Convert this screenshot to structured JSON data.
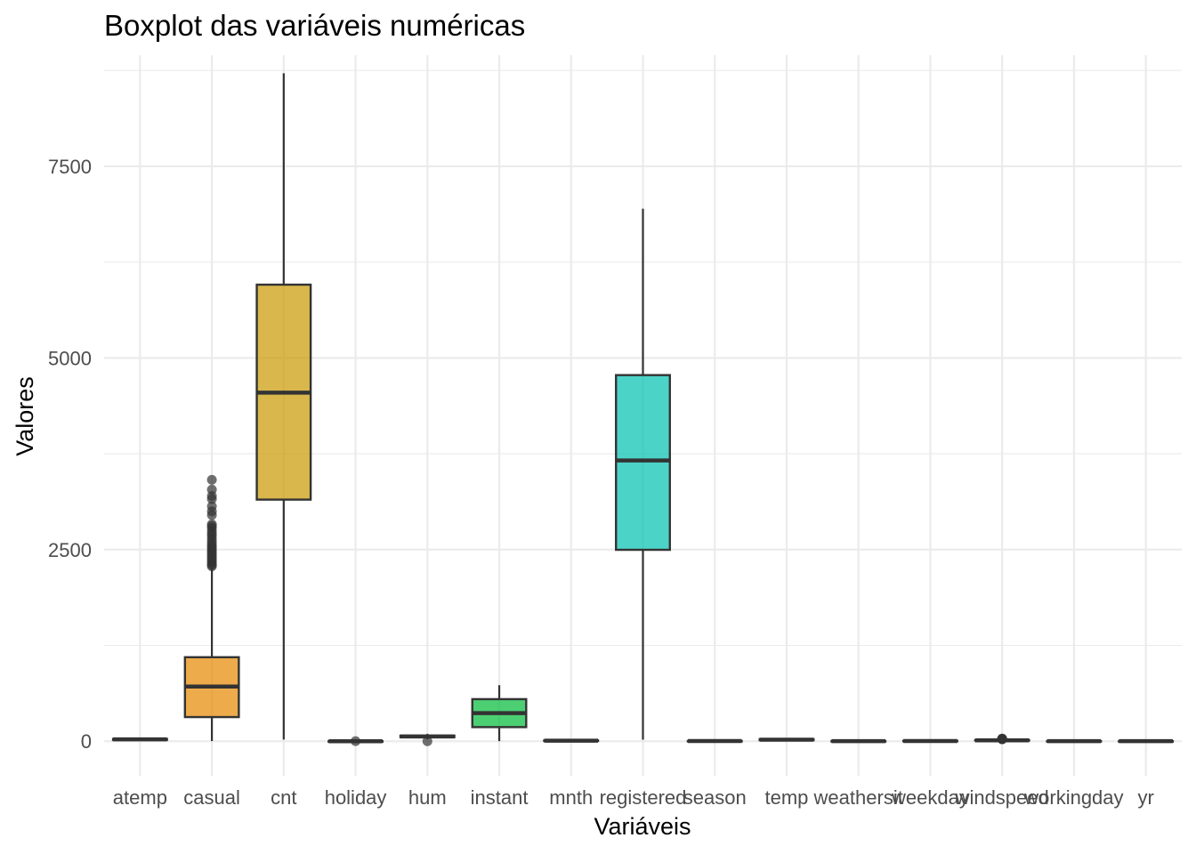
{
  "chart_data": {
    "type": "boxplot",
    "title": "Boxplot das variáveis numéricas",
    "xlabel": "Variáveis",
    "ylabel": "Valores",
    "ylim": [
      -450,
      8950
    ],
    "y_ticks": [
      0,
      2500,
      5000,
      7500
    ],
    "y_tick_labels": [
      "0",
      "2500",
      "5000",
      "7500"
    ],
    "grid": true,
    "legend": "none",
    "categories": [
      "atemp",
      "casual",
      "cnt",
      "holiday",
      "hum",
      "instant",
      "mnth",
      "registered",
      "season",
      "temp",
      "weathersit",
      "weekday",
      "windspeed",
      "workingday",
      "yr"
    ],
    "boxes": [
      {
        "category": "atemp",
        "min": 4,
        "q1": 17,
        "median": 25,
        "q3": 30,
        "max": 44,
        "color": "#F8766D",
        "outliers": []
      },
      {
        "category": "casual",
        "min": 2,
        "q1": 315,
        "median": 713,
        "q3": 1096,
        "max": 2258,
        "color": "#E58700",
        "outliers": [
          2282,
          2301,
          2320,
          2345,
          2370,
          2395,
          2420,
          2446,
          2470,
          2495,
          2521,
          2546,
          2572,
          2604,
          2640,
          2678,
          2705,
          2740,
          2780,
          2806,
          2830,
          2950,
          3000,
          3065,
          3160,
          3200,
          3283,
          3410
        ]
      },
      {
        "category": "cnt",
        "min": 22,
        "q1": 3152,
        "median": 4548,
        "q3": 5956,
        "max": 8714,
        "color": "#C99800",
        "outliers": []
      },
      {
        "category": "holiday",
        "min": 0,
        "q1": 0,
        "median": 0,
        "q3": 0,
        "max": 0,
        "color": "#A3A500",
        "outliers": [
          1
        ]
      },
      {
        "category": "hum",
        "min": 25,
        "q1": 52,
        "median": 62,
        "q3": 73,
        "max": 97,
        "color": "#6BB100",
        "outliers": [
          0
        ]
      },
      {
        "category": "instant",
        "min": 1,
        "q1": 184,
        "median": 366,
        "q3": 549,
        "max": 731,
        "color": "#00BA38",
        "outliers": []
      },
      {
        "category": "mnth",
        "min": 1,
        "q1": 4,
        "median": 7,
        "q3": 10,
        "max": 12,
        "color": "#00BF7D",
        "outliers": []
      },
      {
        "category": "registered",
        "min": 20,
        "q1": 2497,
        "median": 3662,
        "q3": 4776,
        "max": 6946,
        "color": "#00C0AF",
        "outliers": []
      },
      {
        "category": "season",
        "min": 1,
        "q1": 2,
        "median": 3,
        "q3": 3,
        "max": 4,
        "color": "#00BCD8",
        "outliers": []
      },
      {
        "category": "temp",
        "min": 3,
        "q1": 14,
        "median": 20,
        "q3": 27,
        "max": 35,
        "color": "#00B0F6",
        "outliers": []
      },
      {
        "category": "weathersit",
        "min": 1,
        "q1": 1,
        "median": 1,
        "q3": 2,
        "max": 3,
        "color": "#619CFF",
        "outliers": []
      },
      {
        "category": "weekday",
        "min": 0,
        "q1": 1,
        "median": 3,
        "q3": 5,
        "max": 6,
        "color": "#B983FF",
        "outliers": []
      },
      {
        "category": "windspeed",
        "min": 2,
        "q1": 9,
        "median": 12,
        "q3": 15,
        "max": 25,
        "color": "#E76BF3",
        "outliers": [
          26,
          27,
          28,
          29,
          30,
          32,
          34
        ]
      },
      {
        "category": "workingday",
        "min": 0,
        "q1": 0,
        "median": 1,
        "q3": 1,
        "max": 1,
        "color": "#FD61D1",
        "outliers": []
      },
      {
        "category": "yr",
        "min": 0,
        "q1": 0,
        "median": 1,
        "q3": 1,
        "max": 1,
        "color": "#FF67A4",
        "outliers": []
      }
    ]
  }
}
